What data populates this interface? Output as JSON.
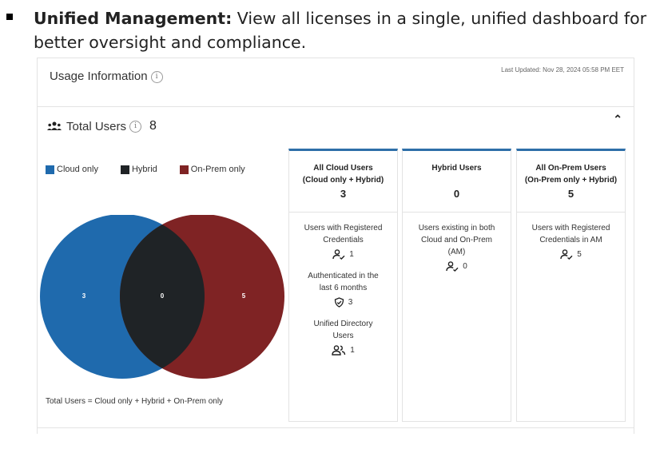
{
  "bullet": {
    "bold": "Unified Management:",
    "text": " View all licenses in a single, unified dashboard for better oversight and compliance."
  },
  "panel": {
    "title": "Usage Information",
    "info": "i",
    "last_updated": "Last Updated: Nov 28, 2024 05:58 PM EET"
  },
  "section": {
    "title": "Total Users",
    "info": "i",
    "count": "8",
    "collapse_icon": "chevron-up-icon"
  },
  "legend": [
    {
      "label": "Cloud only",
      "color": "#1f6aad"
    },
    {
      "label": "Hybrid",
      "color": "#1f2326"
    },
    {
      "label": "On-Prem only",
      "color": "#7f2324"
    }
  ],
  "venn": {
    "cloud": "3",
    "hybrid": "0",
    "onprem": "5",
    "colors": {
      "cloud": "#1f6aad",
      "hybrid": "#1f2326",
      "onprem": "#7f2324"
    }
  },
  "formula": "Total Users = Cloud only + Hybrid + On-Prem only",
  "cards": [
    {
      "title": "All Cloud Users",
      "subtitle": "(Cloud only + Hybrid)",
      "count": "3",
      "metrics": [
        {
          "label_l1": "Users with Registered",
          "label_l2": "Credentials",
          "label_l3": "",
          "icon": "user-check-icon",
          "value": "1"
        },
        {
          "label_l1": "Authenticated in the",
          "label_l2": "last 6 months",
          "label_l3": "",
          "icon": "shield-check-icon",
          "value": "3"
        },
        {
          "label_l1": "Unified Directory",
          "label_l2": "Users",
          "label_l3": "",
          "icon": "users-icon",
          "value": "1"
        }
      ]
    },
    {
      "title": "Hybrid Users",
      "subtitle": "",
      "count": "0",
      "metrics": [
        {
          "label_l1": "Users existing in both",
          "label_l2": "Cloud and On-Prem",
          "label_l3": "(AM)",
          "icon": "user-check-icon",
          "value": "0"
        }
      ]
    },
    {
      "title": "All On-Prem Users",
      "subtitle": "(On-Prem only + Hybrid)",
      "count": "5",
      "metrics": [
        {
          "label_l1": "Users with Registered",
          "label_l2": "Credentials in AM",
          "label_l3": "",
          "icon": "user-check-icon",
          "value": "5"
        }
      ]
    }
  ]
}
